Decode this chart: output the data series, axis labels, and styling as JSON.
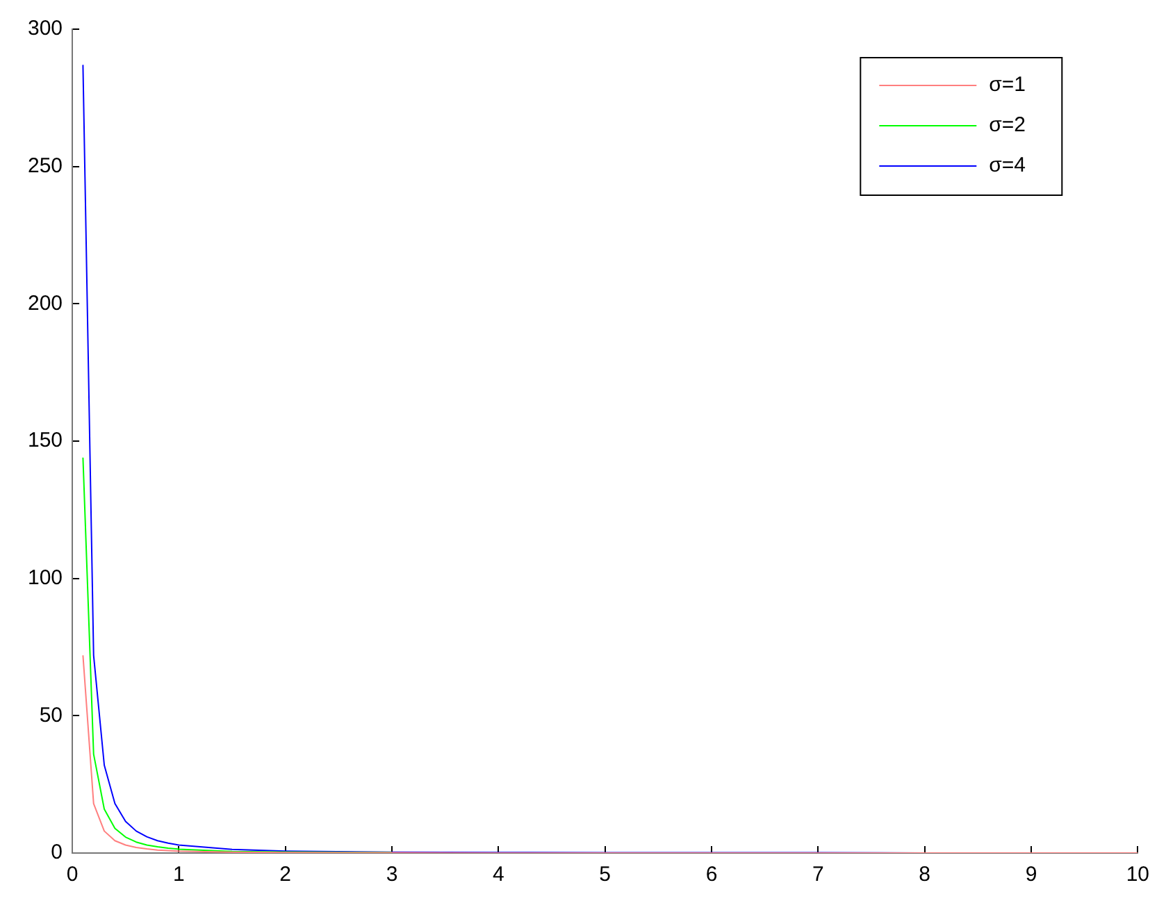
{
  "chart_data": {
    "type": "line",
    "x": [
      0.1,
      0.2,
      0.3,
      0.4,
      0.5,
      0.6,
      0.7,
      0.8,
      0.9,
      1,
      1.5,
      2,
      3,
      4,
      5,
      6,
      7,
      8,
      9,
      10
    ],
    "series": [
      {
        "name": "σ=1",
        "color": "#ff7f7f",
        "values": [
          72,
          18,
          8,
          4.5,
          2.9,
          2,
          1.5,
          1.1,
          0.9,
          0.7,
          0.3,
          0.2,
          0.1,
          0,
          0,
          0,
          0,
          0,
          0,
          0
        ]
      },
      {
        "name": "σ=2",
        "color": "#00ff00",
        "values": [
          144,
          36,
          16,
          9,
          5.8,
          4,
          2.9,
          2.3,
          1.8,
          1.4,
          0.6,
          0.4,
          0.2,
          null,
          null,
          null,
          null,
          null,
          null,
          null
        ]
      },
      {
        "name": "σ=4",
        "color": "#0000ff",
        "values": [
          287,
          72,
          32,
          18,
          11.5,
          8,
          5.9,
          4.5,
          3.6,
          2.9,
          1.3,
          0.7,
          0.3,
          0.2,
          0.1,
          0.1,
          0.1,
          0,
          null,
          null
        ]
      }
    ],
    "xlim": [
      0,
      10
    ],
    "xticks": [
      0,
      1,
      2,
      3,
      4,
      5,
      6,
      7,
      8,
      9,
      10
    ],
    "ylim": [
      0,
      300
    ],
    "yticks": [
      0,
      50,
      100,
      150,
      200,
      250,
      300
    ],
    "grid": false,
    "legend": "top right",
    "marker": "none",
    "line_style": "solid"
  }
}
